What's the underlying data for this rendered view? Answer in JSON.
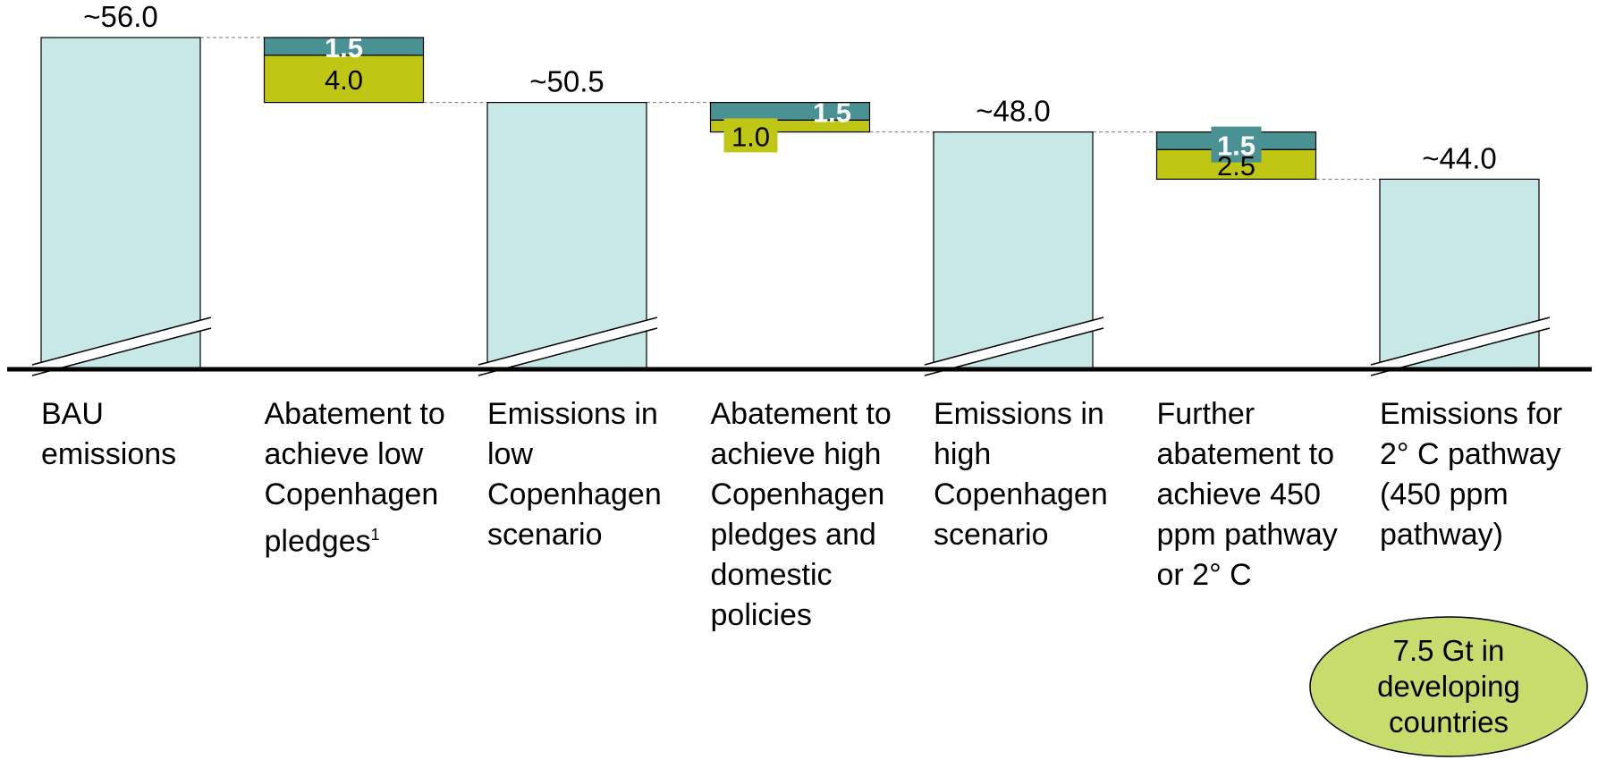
{
  "chart_data": {
    "type": "bar",
    "subtype": "waterfall",
    "title": "",
    "xlabel": "",
    "ylabel": "",
    "axis_break": true,
    "categories": [
      "BAU\nemissions",
      "Abatement to\nachieve low\nCopenhagen\npledges",
      "Emissions in\nlow\nCopenhagen\nscenario",
      "Abatement to\nachieve high\nCopenhagen\npledges and\ndomestic\npolicies",
      "Emissions in\nhigh\nCopenhagen\nscenario",
      "Further\nabatement to\nachieve 450\nppm pathway\nor 2° C",
      "Emissions for\n2° C pathway\n(450 ppm\npathway)"
    ],
    "footnote_marker": "1",
    "totals": [
      {
        "category_index": 0,
        "value": 56.0,
        "label": "~56.0"
      },
      {
        "category_index": 2,
        "value": 50.5,
        "label": "~50.5"
      },
      {
        "category_index": 4,
        "value": 48.0,
        "label": "~48.0"
      },
      {
        "category_index": 6,
        "value": 44.0,
        "label": "~44.0"
      }
    ],
    "abatements": [
      {
        "category_index": 1,
        "from": 56.0,
        "to": 50.5,
        "segments": [
          {
            "series_index": 0,
            "value": 1.5,
            "label": "1.5"
          },
          {
            "series_index": 1,
            "value": 4.0,
            "label": "4.0"
          }
        ]
      },
      {
        "category_index": 3,
        "from": 50.5,
        "to": 48.0,
        "segments": [
          {
            "series_index": 0,
            "value": 1.5,
            "label": "1.5"
          },
          {
            "series_index": 1,
            "value": 1.0,
            "label": "1.0"
          }
        ]
      },
      {
        "category_index": 5,
        "from": 48.0,
        "to": 44.0,
        "segments": [
          {
            "series_index": 0,
            "value": 1.5,
            "label": "1.5"
          },
          {
            "series_index": 1,
            "value": 2.5,
            "label": "2.5"
          }
        ]
      }
    ],
    "colors": {
      "total_fill": "#c8e8e8",
      "segment_top": "#4a9194",
      "segment_bottom": "#bfc614",
      "connector": "#777777",
      "axis": "#000000",
      "callout_fill": "#c6dc6c"
    },
    "callout": "7.5 Gt in\ndeveloping\ncountries"
  }
}
